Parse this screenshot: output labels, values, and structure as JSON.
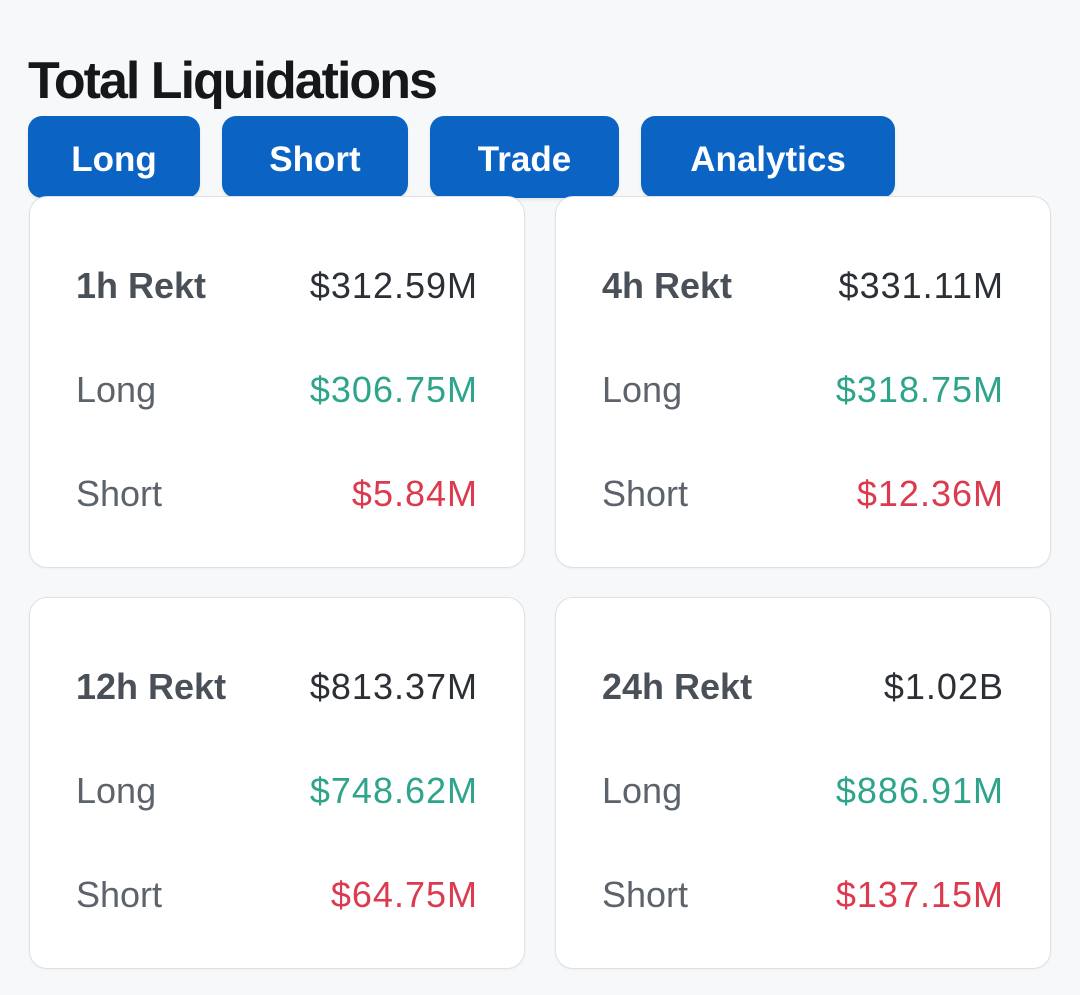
{
  "title": "Total Liquidations",
  "tabs": [
    {
      "label": "Long"
    },
    {
      "label": "Short"
    },
    {
      "label": "Trade"
    },
    {
      "label": "Analytics"
    }
  ],
  "colors": {
    "accent": "#0b63c4",
    "long": "#2ea58b",
    "short": "#dc3b4f"
  },
  "cards": [
    {
      "period_label": "1h Rekt",
      "total": "$312.59M",
      "long_label": "Long",
      "long_value": "$306.75M",
      "short_label": "Short",
      "short_value": "$5.84M"
    },
    {
      "period_label": "4h Rekt",
      "total": "$331.11M",
      "long_label": "Long",
      "long_value": "$318.75M",
      "short_label": "Short",
      "short_value": "$12.36M"
    },
    {
      "period_label": "12h Rekt",
      "total": "$813.37M",
      "long_label": "Long",
      "long_value": "$748.62M",
      "short_label": "Short",
      "short_value": "$64.75M"
    },
    {
      "period_label": "24h Rekt",
      "total": "$1.02B",
      "long_label": "Long",
      "long_value": "$886.91M",
      "short_label": "Short",
      "short_value": "$137.15M"
    }
  ]
}
